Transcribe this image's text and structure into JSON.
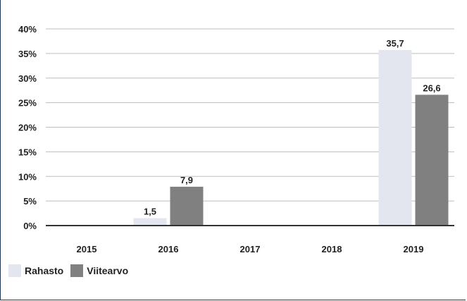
{
  "chart_data": {
    "type": "bar",
    "categories": [
      "2015",
      "2016",
      "2017",
      "2018",
      "2019"
    ],
    "series": [
      {
        "name": "Rahasto",
        "color": "#e3e6ef",
        "values": [
          null,
          1.5,
          null,
          null,
          35.7
        ],
        "labels": [
          "",
          "1,5",
          "",
          "",
          "35,7"
        ]
      },
      {
        "name": "Viitearvo",
        "color": "#808080",
        "values": [
          null,
          7.9,
          null,
          null,
          26.6
        ],
        "labels": [
          "",
          "7,9",
          "",
          "",
          "26,6"
        ]
      }
    ],
    "y_ticks": [
      "0%",
      "5%",
      "10%",
      "15%",
      "20%",
      "25%",
      "30%",
      "35%",
      "40%"
    ],
    "ylim": [
      0,
      40
    ],
    "grid": true,
    "legend_position": "bottom-left"
  }
}
